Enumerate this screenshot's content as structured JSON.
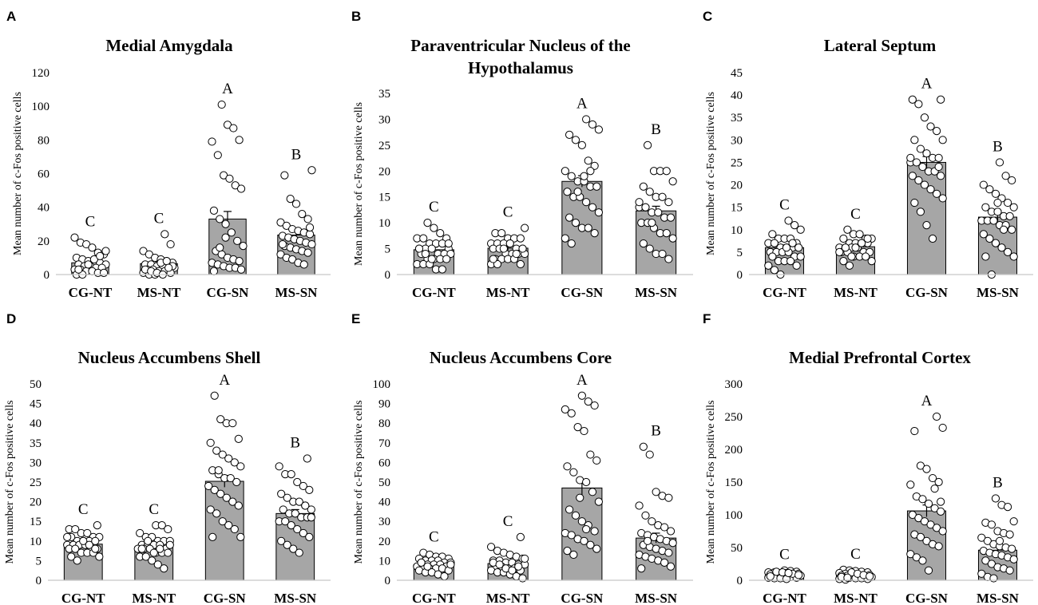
{
  "chart_data": [
    {
      "type": "bar",
      "panel": "A",
      "title": "Medial Amygdala",
      "ylabel": "Mean number of c-Fos positive cells",
      "ylim": [
        0,
        120
      ],
      "yticks": [
        0,
        20,
        40,
        60,
        80,
        100,
        120
      ],
      "categories": [
        "CG-NT",
        "MS-NT",
        "CG-SN",
        "MS-SN"
      ],
      "values": [
        7,
        6.5,
        33,
        23.5
      ],
      "errors": [
        1.2,
        1.2,
        4.5,
        2.5
      ],
      "significance": [
        "C",
        "C",
        "A",
        "B"
      ],
      "points": [
        [
          22,
          19,
          18,
          16,
          13,
          12,
          10,
          9,
          8,
          8,
          7,
          6,
          6,
          5,
          5,
          4,
          4,
          3,
          3,
          2,
          2,
          1,
          1,
          0,
          0,
          6,
          9,
          11,
          14,
          3
        ],
        [
          24,
          18,
          14,
          12,
          10,
          9,
          8,
          7,
          6,
          6,
          5,
          5,
          4,
          4,
          3,
          3,
          2,
          2,
          1,
          1,
          0,
          0,
          7,
          8,
          5,
          3,
          2,
          1,
          0,
          4
        ],
        [
          101,
          89,
          87,
          80,
          79,
          71,
          59,
          57,
          53,
          51,
          38,
          33,
          30,
          25,
          20,
          17,
          14,
          12,
          10,
          9,
          8,
          7,
          6,
          5,
          4,
          4,
          3,
          2,
          16,
          22
        ],
        [
          62,
          59,
          45,
          42,
          36,
          33,
          31,
          29,
          27,
          26,
          25,
          24,
          23,
          22,
          21,
          20,
          19,
          18,
          17,
          16,
          15,
          14,
          13,
          12,
          10,
          9,
          7,
          6,
          28,
          18
        ]
      ]
    },
    {
      "type": "bar",
      "panel": "B",
      "title": "Paraventricular Nucleus of the",
      "title2": "Hypothalamus",
      "ylabel": "Mean number of c-Fos positive cells",
      "ylim": [
        0,
        35
      ],
      "yticks": [
        0,
        5,
        10,
        15,
        20,
        25,
        30,
        35
      ],
      "categories": [
        "CG-NT",
        "MS-NT",
        "CG-SN",
        "MS-SN"
      ],
      "values": [
        4.8,
        5.1,
        18,
        12.3
      ],
      "errors": [
        0.5,
        0.4,
        1.1,
        0.9
      ],
      "significance": [
        "C",
        "C",
        "A",
        "B"
      ],
      "points": [
        [
          10,
          9,
          8,
          7,
          7,
          7,
          6,
          6,
          6,
          5,
          5,
          5,
          5,
          4,
          4,
          4,
          4,
          3,
          3,
          3,
          3,
          2,
          2,
          2,
          1,
          1,
          6,
          5,
          4,
          3
        ],
        [
          9,
          8,
          8,
          7,
          7,
          7,
          6,
          6,
          6,
          6,
          5,
          5,
          5,
          5,
          4,
          4,
          4,
          4,
          3,
          3,
          3,
          3,
          2,
          2,
          2,
          5,
          6,
          4,
          5,
          3
        ],
        [
          30,
          29,
          28,
          27,
          26,
          25,
          22,
          21,
          20,
          19,
          18,
          18,
          17,
          17,
          16,
          15,
          15,
          14,
          13,
          12,
          11,
          10,
          9,
          9,
          8,
          7,
          6,
          16,
          19,
          20
        ],
        [
          25,
          20,
          20,
          20,
          18,
          17,
          16,
          15,
          15,
          14,
          13,
          13,
          12,
          12,
          11,
          11,
          10,
          10,
          9,
          8,
          8,
          7,
          6,
          5,
          4,
          4,
          3,
          14,
          13,
          10
        ]
      ]
    },
    {
      "type": "bar",
      "panel": "C",
      "title": "Lateral Septum",
      "ylabel": "Mean number of c-Fos positive cells",
      "ylim": [
        0,
        45
      ],
      "yticks": [
        0,
        5,
        10,
        15,
        20,
        25,
        30,
        35,
        40,
        45
      ],
      "categories": [
        "CG-NT",
        "MS-NT",
        "CG-SN",
        "MS-SN"
      ],
      "values": [
        6,
        6.2,
        25,
        12.8
      ],
      "errors": [
        0.6,
        0.5,
        1.3,
        1.0
      ],
      "significance": [
        "C",
        "C",
        "A",
        "B"
      ],
      "points": [
        [
          12,
          11,
          10,
          9,
          8,
          8,
          8,
          7,
          7,
          7,
          6,
          6,
          6,
          6,
          5,
          5,
          5,
          5,
          4,
          4,
          4,
          3,
          3,
          3,
          2,
          2,
          1,
          0,
          6,
          7
        ],
        [
          10,
          9,
          9,
          8,
          8,
          8,
          7,
          7,
          7,
          7,
          6,
          6,
          6,
          6,
          5,
          5,
          5,
          5,
          4,
          4,
          4,
          3,
          3,
          2,
          6,
          7,
          8,
          5,
          6,
          4
        ],
        [
          39,
          39,
          38,
          35,
          33,
          32,
          30,
          30,
          28,
          27,
          26,
          26,
          25,
          25,
          24,
          23,
          23,
          22,
          22,
          21,
          20,
          19,
          18,
          17,
          16,
          14,
          11,
          8,
          24,
          26
        ],
        [
          25,
          22,
          21,
          20,
          19,
          18,
          17,
          16,
          15,
          15,
          14,
          14,
          13,
          13,
          12,
          12,
          12,
          11,
          11,
          10,
          9,
          8,
          7,
          6,
          5,
          4,
          4,
          0,
          16,
          10
        ]
      ]
    },
    {
      "type": "bar",
      "panel": "D",
      "title": "Nucleus Accumbens Shell",
      "ylabel": "Mean number of c-Fos positive cells",
      "ylim": [
        0,
        50
      ],
      "yticks": [
        0,
        5,
        10,
        15,
        20,
        25,
        30,
        35,
        40,
        45,
        50
      ],
      "categories": [
        "CG-NT",
        "MS-NT",
        "CG-SN",
        "MS-SN"
      ],
      "values": [
        9.2,
        8.5,
        25.2,
        17
      ],
      "errors": [
        0.5,
        0.5,
        1.5,
        1.0
      ],
      "significance": [
        "C",
        "C",
        "A",
        "B"
      ],
      "points": [
        [
          14,
          13,
          13,
          12,
          12,
          11,
          11,
          11,
          10,
          10,
          10,
          10,
          9,
          9,
          9,
          9,
          8,
          8,
          8,
          8,
          7,
          7,
          7,
          6,
          6,
          5,
          10,
          9,
          8,
          11
        ],
        [
          14,
          14,
          13,
          12,
          11,
          11,
          10,
          10,
          10,
          9,
          9,
          9,
          9,
          8,
          8,
          8,
          8,
          7,
          7,
          7,
          6,
          6,
          5,
          4,
          3,
          9,
          8,
          10,
          7,
          8
        ],
        [
          47,
          41,
          40,
          40,
          36,
          35,
          33,
          32,
          31,
          30,
          29,
          28,
          27,
          26,
          26,
          25,
          24,
          23,
          22,
          21,
          20,
          19,
          18,
          17,
          15,
          14,
          13,
          11,
          11,
          28
        ],
        [
          31,
          29,
          27,
          27,
          25,
          24,
          23,
          22,
          21,
          20,
          20,
          19,
          18,
          18,
          17,
          17,
          16,
          16,
          15,
          15,
          14,
          13,
          12,
          11,
          10,
          9,
          8,
          7,
          19,
          16
        ]
      ]
    },
    {
      "type": "bar",
      "panel": "E",
      "title": "Nucleus Accumbens Core",
      "ylabel": "Mean number of c-Fos positive cells",
      "ylim": [
        0,
        100
      ],
      "yticks": [
        0,
        10,
        20,
        30,
        40,
        50,
        60,
        70,
        80,
        90,
        100
      ],
      "categories": [
        "CG-NT",
        "MS-NT",
        "CG-SN",
        "MS-SN"
      ],
      "values": [
        8,
        8.5,
        47,
        21.5
      ],
      "errors": [
        0.8,
        1.0,
        4.0,
        2.5
      ],
      "significance": [
        "C",
        "C",
        "A",
        "B"
      ],
      "points": [
        [
          14,
          13,
          12,
          12,
          11,
          11,
          10,
          10,
          10,
          9,
          9,
          9,
          8,
          8,
          8,
          7,
          7,
          7,
          6,
          6,
          6,
          5,
          5,
          4,
          4,
          3,
          2,
          8,
          9,
          7
        ],
        [
          22,
          17,
          15,
          14,
          13,
          12,
          11,
          10,
          10,
          9,
          9,
          8,
          8,
          7,
          7,
          6,
          6,
          5,
          5,
          4,
          4,
          3,
          2,
          1,
          9,
          8,
          6,
          5,
          7,
          11
        ],
        [
          94,
          91,
          89,
          87,
          85,
          78,
          76,
          64,
          61,
          58,
          55,
          51,
          50,
          45,
          40,
          36,
          33,
          30,
          28,
          25,
          24,
          23,
          21,
          20,
          18,
          16,
          15,
          13,
          42,
          26
        ],
        [
          68,
          64,
          45,
          43,
          42,
          38,
          33,
          30,
          28,
          27,
          25,
          24,
          23,
          22,
          21,
          20,
          19,
          18,
          17,
          16,
          15,
          14,
          13,
          12,
          11,
          10,
          9,
          7,
          6,
          20
        ]
      ]
    },
    {
      "type": "bar",
      "panel": "F",
      "title": "Medial Prefrontal Cortex",
      "ylabel": "Mean number of c-Fos positive cells",
      "ylim": [
        0,
        300
      ],
      "yticks": [
        0,
        50,
        100,
        150,
        200,
        250,
        300
      ],
      "categories": [
        "CG-NT",
        "MS-NT",
        "CG-SN",
        "MS-SN"
      ],
      "values": [
        8,
        7,
        106,
        46
      ],
      "errors": [
        1.5,
        1.5,
        9.0,
        6.0
      ],
      "significance": [
        "C",
        "C",
        "A",
        "B"
      ],
      "points": [
        [
          15,
          14,
          13,
          12,
          12,
          11,
          11,
          10,
          10,
          9,
          9,
          8,
          8,
          7,
          7,
          6,
          6,
          5,
          5,
          4,
          4,
          3,
          3,
          2,
          10,
          8,
          6,
          13,
          12,
          11
        ],
        [
          16,
          15,
          14,
          13,
          12,
          11,
          10,
          9,
          9,
          8,
          8,
          7,
          7,
          6,
          6,
          5,
          5,
          4,
          4,
          3,
          3,
          2,
          2,
          1,
          12,
          10,
          8,
          6,
          5,
          4
        ],
        [
          250,
          233,
          228,
          175,
          170,
          156,
          150,
          146,
          128,
          124,
          117,
          110,
          105,
          100,
          95,
          90,
          85,
          80,
          75,
          70,
          66,
          60,
          55,
          52,
          40,
          35,
          30,
          15,
          140,
          120
        ],
        [
          125,
          115,
          112,
          90,
          88,
          85,
          75,
          72,
          70,
          65,
          60,
          55,
          52,
          50,
          48,
          45,
          42,
          40,
          38,
          35,
          32,
          30,
          25,
          20,
          18,
          15,
          10,
          5,
          3,
          60
        ]
      ]
    }
  ]
}
